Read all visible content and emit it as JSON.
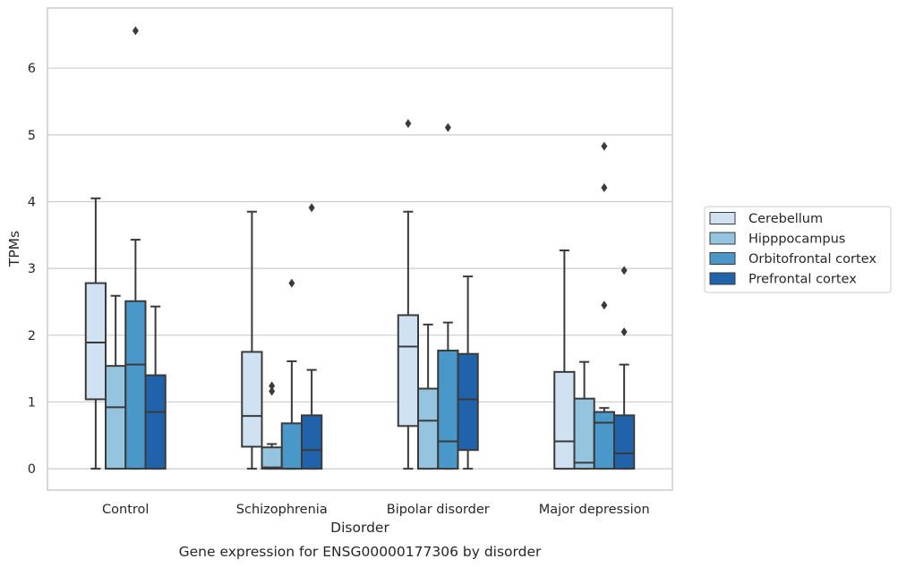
{
  "chart_data": {
    "type": "box",
    "caption": "Gene expression for ENSG00000177306 by disorder",
    "xlabel": "Disorder",
    "ylabel": "TPMs",
    "ylim": [
      -0.32,
      6.9
    ],
    "yticks": [
      0,
      1,
      2,
      3,
      4,
      5,
      6
    ],
    "grid": true,
    "legend_position": "right-center",
    "categories": [
      "Control",
      "Schizophrenia",
      "Bipolar disorder",
      "Major depression"
    ],
    "series": [
      {
        "name": "Cerebellum",
        "color": "#d0e1f2",
        "boxes": [
          {
            "whislo": 0,
            "q1": 1.04,
            "med": 1.89,
            "q3": 2.78,
            "whishi": 4.05,
            "fliers": []
          },
          {
            "whislo": 0,
            "q1": 0.33,
            "med": 0.79,
            "q3": 1.75,
            "whishi": 3.85,
            "fliers": []
          },
          {
            "whislo": 0,
            "q1": 0.64,
            "med": 1.83,
            "q3": 2.3,
            "whishi": 3.85,
            "fliers": [
              5.17
            ]
          },
          {
            "whislo": 0,
            "q1": 0,
            "med": 0.41,
            "q3": 1.45,
            "whishi": 3.27,
            "fliers": []
          }
        ]
      },
      {
        "name": "Hipppocampus",
        "color": "#94c4df",
        "boxes": [
          {
            "whislo": 0,
            "q1": 0,
            "med": 0.92,
            "q3": 1.54,
            "whishi": 2.59,
            "fliers": []
          },
          {
            "whislo": 0,
            "q1": 0,
            "med": 0.02,
            "q3": 0.32,
            "whishi": 0.37,
            "fliers": [
              1.16,
              1.24
            ]
          },
          {
            "whislo": 0,
            "q1": 0,
            "med": 0.72,
            "q3": 1.2,
            "whishi": 2.16,
            "fliers": []
          },
          {
            "whislo": 0,
            "q1": 0,
            "med": 0.09,
            "q3": 1.05,
            "whishi": 1.6,
            "fliers": []
          }
        ]
      },
      {
        "name": "Orbitofrontal cortex",
        "color": "#4a98c9",
        "boxes": [
          {
            "whislo": 0,
            "q1": 0,
            "med": 1.56,
            "q3": 2.51,
            "whishi": 3.43,
            "fliers": [
              6.56
            ]
          },
          {
            "whislo": 0,
            "q1": 0,
            "med": 0,
            "q3": 0.68,
            "whishi": 1.61,
            "fliers": [
              2.78
            ]
          },
          {
            "whislo": 0,
            "q1": 0,
            "med": 0.41,
            "q3": 1.77,
            "whishi": 2.19,
            "fliers": [
              5.11
            ]
          },
          {
            "whislo": 0,
            "q1": 0,
            "med": 0.69,
            "q3": 0.85,
            "whishi": 0.91,
            "fliers": [
              2.45,
              4.21,
              4.83
            ]
          }
        ]
      },
      {
        "name": "Prefrontal cortex",
        "color": "#2163aa",
        "boxes": [
          {
            "whislo": 0,
            "q1": 0,
            "med": 0.85,
            "q3": 1.4,
            "whishi": 2.43,
            "fliers": []
          },
          {
            "whislo": 0,
            "q1": 0,
            "med": 0.28,
            "q3": 0.8,
            "whishi": 1.48,
            "fliers": [
              3.91
            ]
          },
          {
            "whislo": 0,
            "q1": 0.28,
            "med": 1.04,
            "q3": 1.72,
            "whishi": 2.88,
            "fliers": []
          },
          {
            "whislo": 0,
            "q1": 0,
            "med": 0.23,
            "q3": 0.8,
            "whishi": 1.56,
            "fliers": [
              2.05,
              2.97
            ]
          }
        ]
      }
    ]
  }
}
